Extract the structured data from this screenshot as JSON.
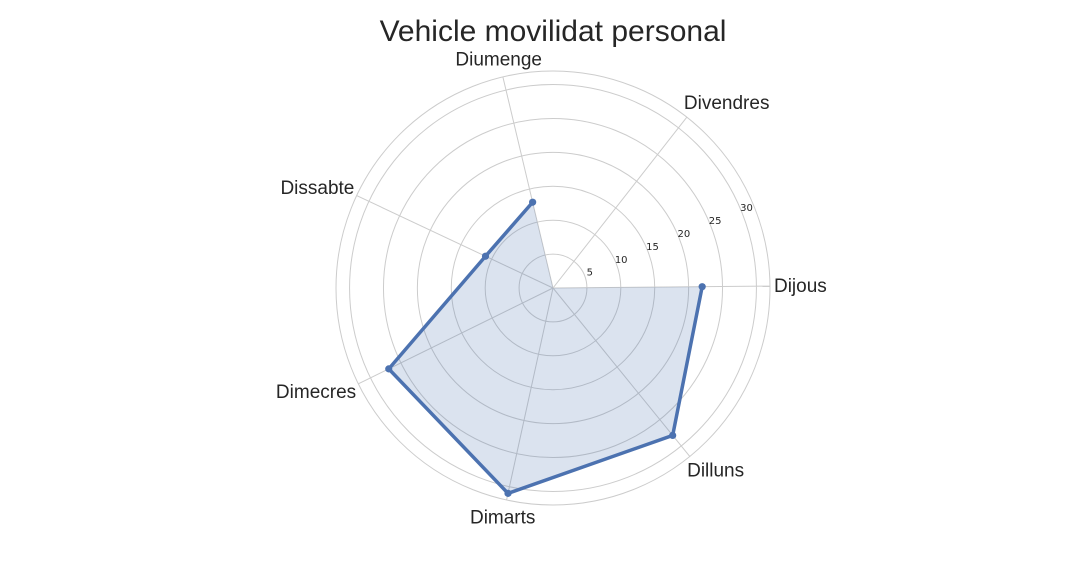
{
  "chart_data": {
    "type": "radar",
    "title": "Vehicle movilidat personal",
    "categories": [
      "Dijous",
      "Divendres",
      "Diumenge",
      "Dissabte",
      "Dimecres",
      "Dimarts",
      "Dilluns"
    ],
    "series": [
      {
        "name": "Vehicle movilidat personal",
        "values": [
          22,
          0,
          13,
          11,
          27,
          31,
          28
        ],
        "line_color": "#4c72b0",
        "fill_color": "#4c72b0",
        "fill_opacity": 0.2
      }
    ],
    "radial_ticks": [
      5,
      10,
      15,
      20,
      25,
      30
    ],
    "rlim": [
      0,
      32
    ],
    "grid": true
  }
}
